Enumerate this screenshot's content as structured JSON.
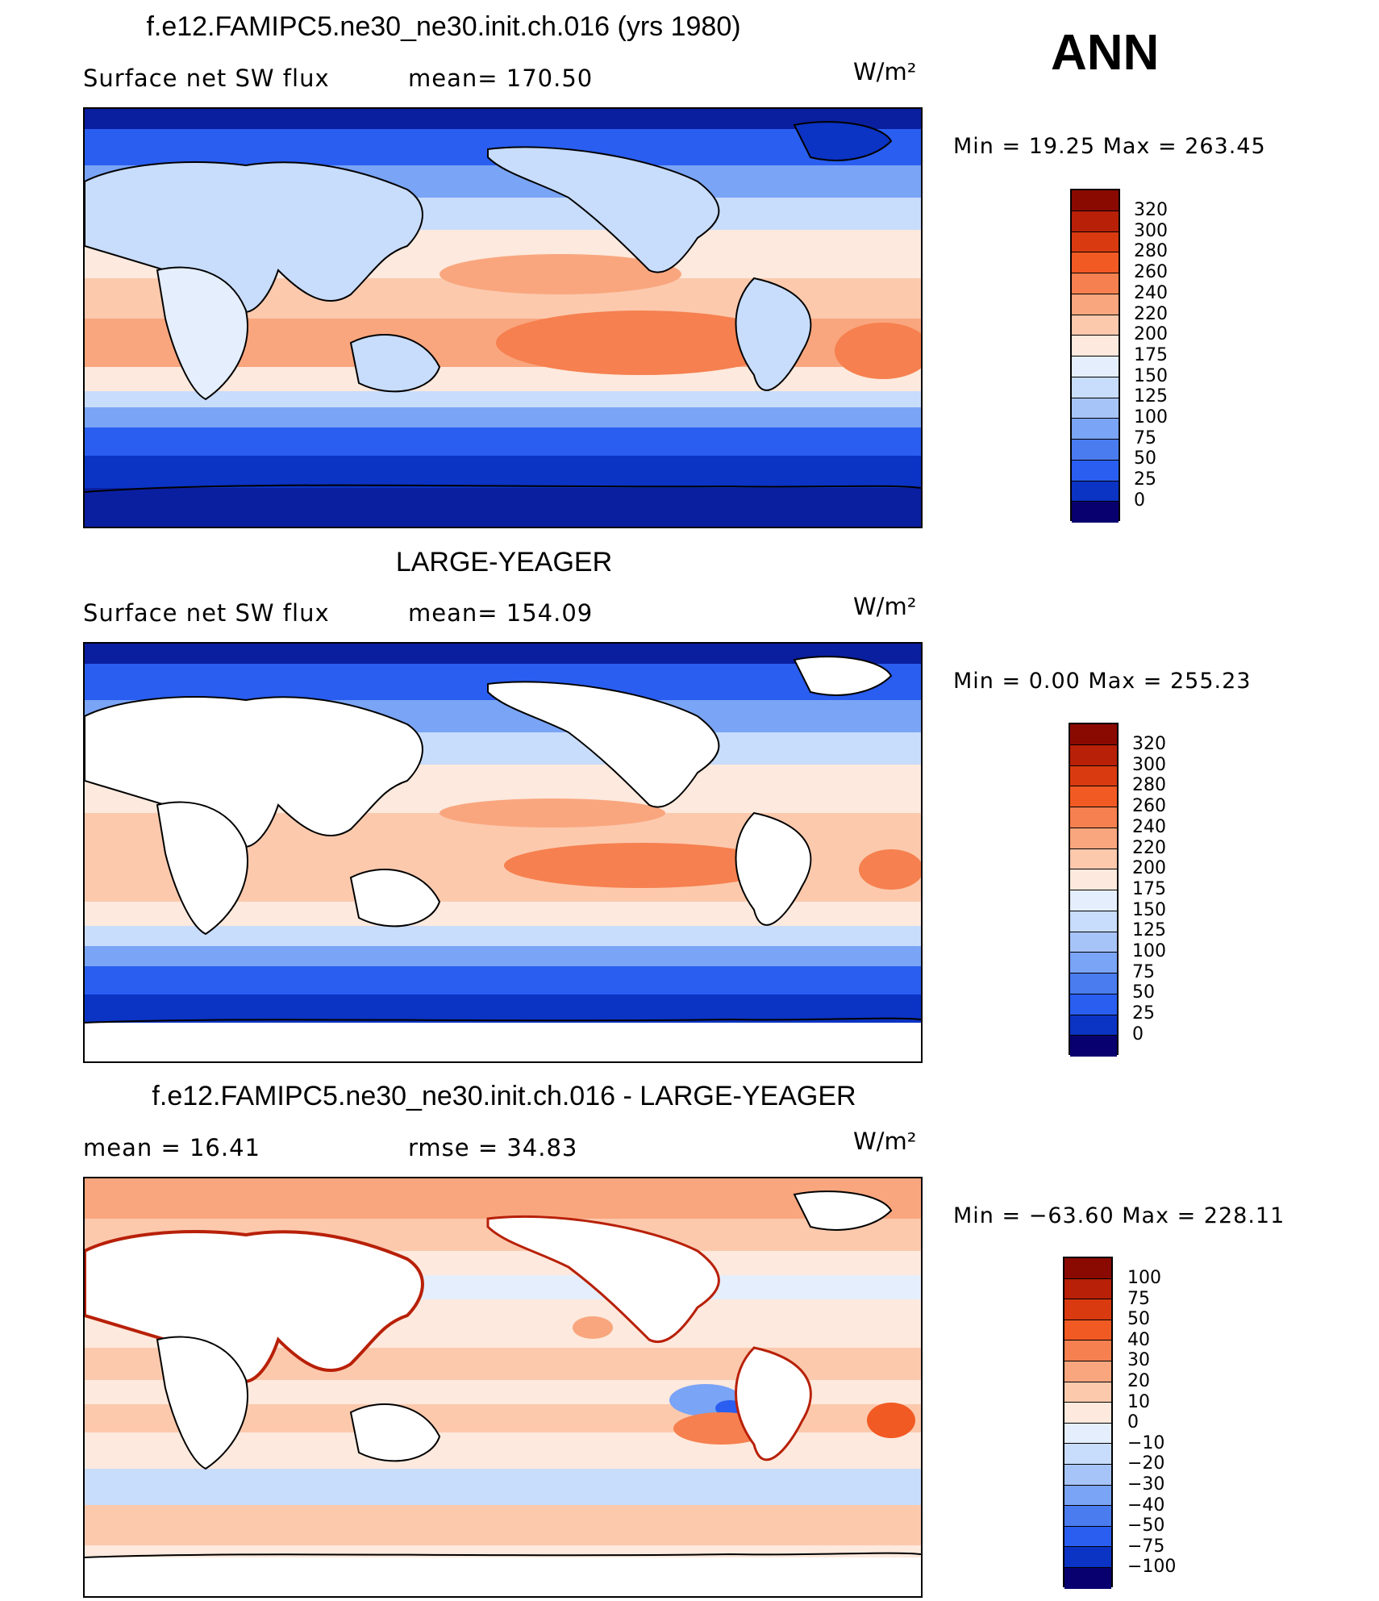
{
  "season": "ANN",
  "colors": {
    "abs_scale": [
      "#08006e",
      "#0a1fa0",
      "#0b33c4",
      "#1746d8",
      "#2a5ef0",
      "#4a7cf0",
      "#7aa4f5",
      "#a7c4f8",
      "#c8dcfb",
      "#e4eefc",
      "#fde9dd",
      "#fcc9ad",
      "#f9a67e",
      "#f6804f",
      "#f25a23",
      "#d93a10",
      "#b82008",
      "#8a0a02"
    ],
    "diff_scale": [
      "#08006e",
      "#0a1fa0",
      "#0b33c4",
      "#1746d8",
      "#2a5ef0",
      "#4a7cf0",
      "#7aa4f5",
      "#a7c4f8",
      "#c8dcfb",
      "#e4eefc",
      "#fde9dd",
      "#fcc9ad",
      "#f9a67e",
      "#f6804f",
      "#f25a23",
      "#d93a10",
      "#b82008",
      "#8a0a02"
    ],
    "land": "#ffffff",
    "coast": "#000000"
  },
  "panels": [
    {
      "title": "f.e12.FAMIPC5.ne30_ne30.init.ch.016 (yrs 1980)",
      "left_label": "Surface net SW flux",
      "stat_label": "mean=  170.50",
      "units": "W/m²",
      "minmax": "Min  =    19.25  Max  =  263.45",
      "legend_labels": [
        "320",
        "300",
        "280",
        "260",
        "240",
        "220",
        "200",
        "175",
        "150",
        "125",
        "100",
        "75",
        "50",
        "25",
        "0"
      ],
      "land_masked": false
    },
    {
      "title": "LARGE-YEAGER",
      "left_label": "Surface net SW flux",
      "stat_label": "mean=  154.09",
      "units": "W/m²",
      "minmax": "Min  =      0.00  Max  =  255.23",
      "legend_labels": [
        "320",
        "300",
        "280",
        "260",
        "240",
        "220",
        "200",
        "175",
        "150",
        "125",
        "100",
        "75",
        "50",
        "25",
        "0"
      ],
      "land_masked": true
    },
    {
      "title": "f.e12.FAMIPC5.ne30_ne30.init.ch.016 - LARGE-YEAGER",
      "left_label": "mean  =     16.41",
      "stat_label": "rmse  =     34.83",
      "units": "W/m²",
      "minmax": "Min  =  −63.60  Max  =  228.11",
      "legend_labels": [
        "100",
        "75",
        "50",
        "40",
        "30",
        "20",
        "10",
        "0",
        "−10",
        "−20",
        "−30",
        "−40",
        "−50",
        "−75",
        "−100"
      ],
      "land_masked": true
    }
  ]
}
